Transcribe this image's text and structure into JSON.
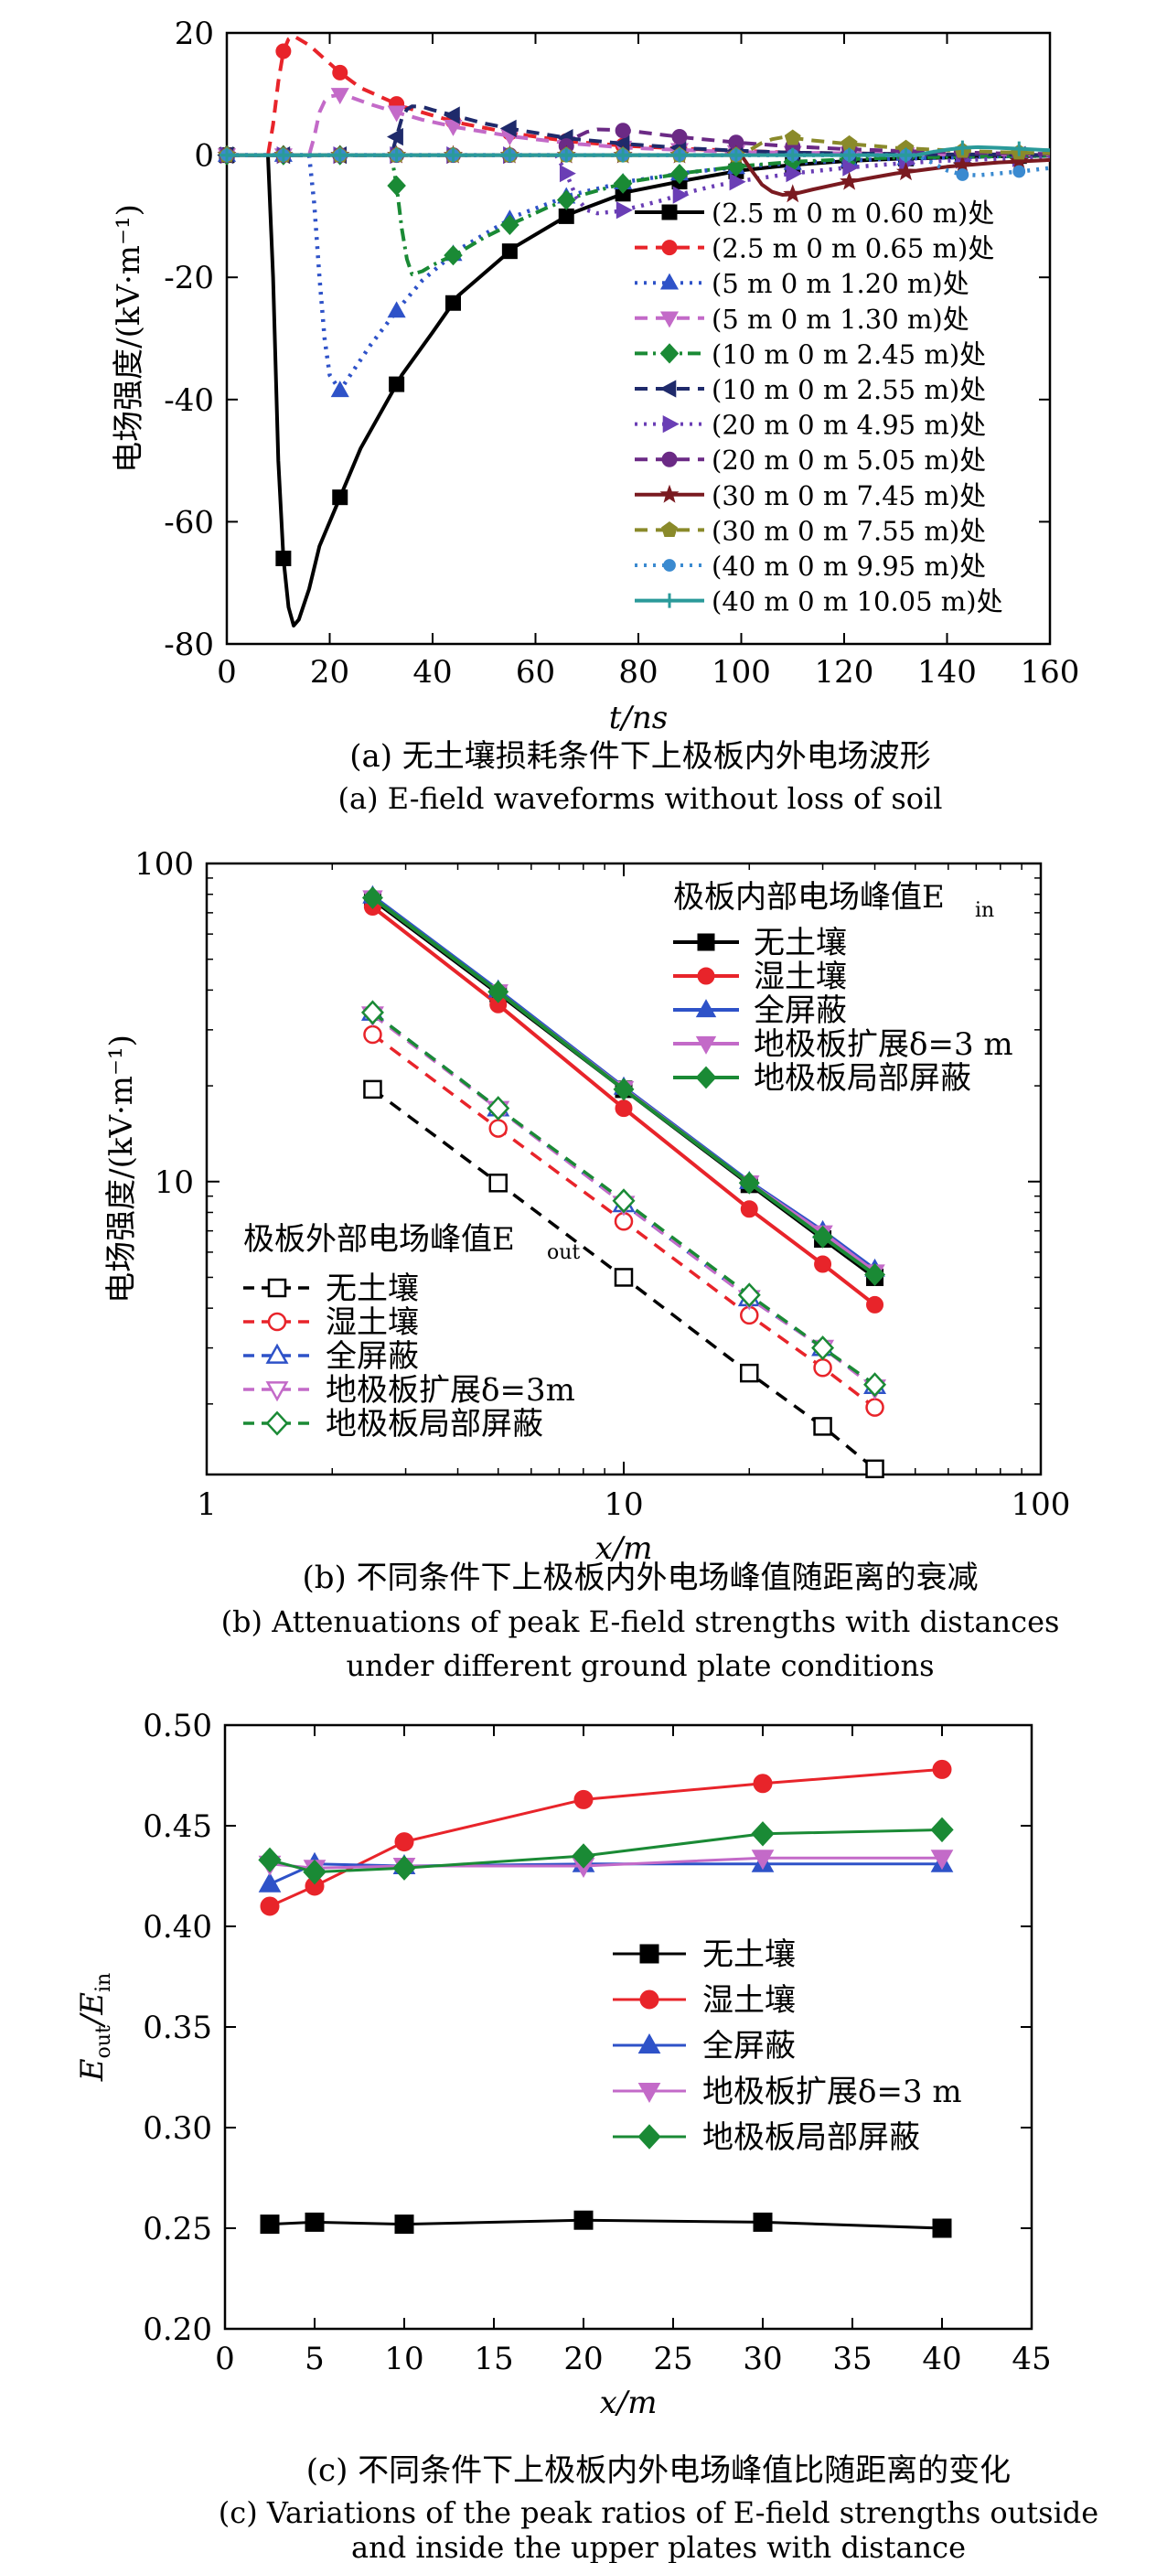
{
  "chart_data": [
    {
      "type": "line",
      "ylabel": "电场强度/(kV·m⁻¹)",
      "xlabel": "t/ns",
      "xlim": [
        0,
        160
      ],
      "ylim": [
        -80,
        20
      ],
      "xticks": [
        0,
        20,
        40,
        60,
        80,
        100,
        120,
        140,
        160
      ],
      "yticks": [
        -80,
        -60,
        -40,
        -20,
        0,
        20
      ],
      "xtick_labels": [
        "0",
        "20",
        "40",
        "60",
        "80",
        "100",
        "120",
        "140",
        "160"
      ],
      "ytick_labels": [
        "-80",
        "-60",
        "-40",
        "-20",
        "0",
        "20"
      ],
      "legend_position": "right",
      "caption_cn": "(a) 无土壤损耗条件下上极板内外电场波形",
      "caption_en": "(a) E-field waveforms without loss of soil",
      "series": [
        {
          "name": "(2.5 m 0 m 0.60 m)处",
          "color": "#000000",
          "dash": "solid",
          "marker": "square",
          "x": [
            0,
            8,
            9,
            10,
            11,
            12,
            13,
            14,
            16,
            18,
            22,
            26,
            34,
            40,
            45,
            56,
            67,
            78,
            90,
            100,
            110,
            120,
            130,
            140,
            150,
            160
          ],
          "y": [
            0,
            0,
            -20,
            -50,
            -66,
            -74,
            -77,
            -76,
            -71,
            -64,
            -56,
            -48,
            -36,
            -29,
            -23,
            -15,
            -9.5,
            -6,
            -4,
            -2.5,
            -1.6,
            -1,
            -0.6,
            -0.4,
            -0.2,
            -0.1
          ]
        },
        {
          "name": "(2.5 m 0 m 0.65 m)处",
          "color": "#e8242a",
          "dash": "dash",
          "marker": "circle",
          "x": [
            0,
            8,
            9,
            10,
            11,
            12,
            13,
            14,
            16,
            18,
            22,
            26,
            34,
            40,
            45,
            56,
            67,
            78,
            90,
            100,
            110,
            120,
            130,
            140,
            150,
            160
          ],
          "y": [
            0,
            0,
            5,
            12,
            17,
            19,
            19.5,
            19,
            18,
            16.5,
            13.5,
            11,
            8,
            6.5,
            5.3,
            3.5,
            2.2,
            1.5,
            1,
            0.7,
            0.4,
            0.3,
            0.2,
            0.1,
            0.1,
            0
          ]
        },
        {
          "name": "(5 m 0 m 1.20 m)处",
          "color": "#2e52c8",
          "dash": "dot",
          "marker": "triangle",
          "x": [
            0,
            16,
            17,
            18,
            19,
            20,
            22,
            24,
            28,
            33,
            38,
            45,
            56,
            67,
            78,
            90,
            100,
            110,
            120,
            130,
            140,
            150,
            160
          ],
          "y": [
            0,
            0,
            -8,
            -20,
            -30,
            -36,
            -38.5,
            -36,
            -31,
            -25.5,
            -20.5,
            -15.5,
            -10,
            -6.5,
            -4.3,
            -2.8,
            -1.9,
            -1.3,
            -0.9,
            -0.6,
            -0.4,
            -0.2,
            -0.1
          ]
        },
        {
          "name": "(5 m 0 m 1.30 m)处",
          "color": "#c36ac8",
          "dash": "dash",
          "marker": "triangle-down",
          "x": [
            0,
            16,
            17,
            18,
            19,
            20,
            22,
            24,
            28,
            33,
            38,
            45,
            56,
            67,
            78,
            90,
            100,
            110,
            120,
            130,
            140,
            150,
            160
          ],
          "y": [
            0,
            0,
            3,
            7,
            8.8,
            9.6,
            9.9,
            9.5,
            8.3,
            7,
            5.8,
            4.5,
            3,
            1.9,
            1.2,
            0.8,
            0.5,
            0.4,
            0.3,
            0.2,
            0.1,
            0.1,
            0
          ]
        },
        {
          "name": "(10 m 0 m 2.45 m)处",
          "color": "#1a8a35",
          "dash": "dashdot",
          "marker": "diamond",
          "x": [
            0,
            32,
            33,
            34,
            35,
            36,
            38,
            40,
            45,
            50,
            56,
            62,
            67,
            78,
            90,
            100,
            110,
            120,
            130,
            140,
            150,
            160
          ],
          "y": [
            0,
            0,
            -5,
            -12,
            -17,
            -19.5,
            -19,
            -18,
            -16,
            -13.5,
            -11,
            -8.7,
            -7,
            -4.4,
            -2.8,
            -1.8,
            -1.1,
            -0.7,
            -0.4,
            -0.3,
            -0.2,
            -0.1
          ]
        },
        {
          "name": "(10 m 0 m 2.55 m)处",
          "color": "#1f2a6b",
          "dash": "dash",
          "marker": "triangle-left",
          "x": [
            0,
            32,
            33,
            34,
            35,
            36,
            38,
            40,
            45,
            50,
            56,
            67,
            78,
            90,
            100,
            110,
            120,
            130,
            140,
            150,
            160
          ],
          "y": [
            0,
            0,
            3,
            6,
            7.5,
            8,
            7.9,
            7.4,
            6.3,
            5.2,
            4.2,
            2.7,
            1.8,
            1.1,
            0.7,
            0.4,
            0.3,
            0.2,
            0.1,
            0.1,
            0
          ]
        },
        {
          "name": "(20 m 0 m 4.95 m)处",
          "color": "#6a3eb5",
          "dash": "dot",
          "marker": "triangle-right",
          "x": [
            0,
            64,
            66,
            68,
            70,
            72,
            76,
            80,
            85,
            90,
            95,
            100,
            110,
            120,
            130,
            140,
            150,
            160
          ],
          "y": [
            0,
            0,
            -3,
            -7,
            -9,
            -9.5,
            -9.2,
            -8.4,
            -7.3,
            -6,
            -5,
            -4.2,
            -3,
            -2.1,
            -1.4,
            -0.9,
            -0.6,
            -0.4
          ]
        },
        {
          "name": "(20 m 0 m 5.05 m)处",
          "color": "#6b2a85",
          "dash": "dash",
          "marker": "circle",
          "x": [
            0,
            64,
            66,
            68,
            70,
            72,
            76,
            80,
            85,
            90,
            100,
            110,
            120,
            130,
            140,
            150,
            160
          ],
          "y": [
            0,
            0,
            1.5,
            3,
            3.8,
            4.2,
            4.1,
            3.8,
            3.3,
            2.8,
            2,
            1.4,
            1,
            0.7,
            0.5,
            0.3,
            0.2
          ]
        },
        {
          "name": "(30 m 0 m 7.45 m)处",
          "color": "#7a1a20",
          "dash": "solid",
          "marker": "star",
          "x": [
            0,
            100,
            102,
            104,
            106,
            108,
            110,
            114,
            120,
            126,
            130,
            140,
            150,
            160
          ],
          "y": [
            0,
            0,
            -2.5,
            -4.8,
            -6,
            -6.5,
            -6.4,
            -5.6,
            -4.5,
            -3.6,
            -3,
            -1.9,
            -1.2,
            -0.8
          ]
        },
        {
          "name": "(30 m 0 m 7.55 m)处",
          "color": "#8a8a2a",
          "dash": "dash",
          "marker": "pentagon",
          "x": [
            0,
            100,
            102,
            104,
            106,
            108,
            110,
            114,
            120,
            126,
            130,
            140,
            150,
            160
          ],
          "y": [
            0,
            0,
            1,
            2,
            2.6,
            2.9,
            2.8,
            2.4,
            1.9,
            1.5,
            1.2,
            0.8,
            0.5,
            0.3
          ]
        },
        {
          "name": "(40 m 0 m 9.95 m)处",
          "color": "#3a8ad0",
          "dash": "dot",
          "marker": "sphere",
          "x": [
            0,
            134,
            137,
            140,
            143,
            146,
            150,
            155,
            160
          ],
          "y": [
            0,
            0,
            -1.2,
            -2.5,
            -3.2,
            -3.3,
            -3,
            -2.6,
            -2.1
          ]
        },
        {
          "name": "(40 m 0 m 10.05 m)处",
          "color": "#2a9a9a",
          "dash": "solid",
          "marker": "plus",
          "x": [
            0,
            134,
            137,
            140,
            143,
            146,
            150,
            155,
            160
          ],
          "y": [
            0,
            0,
            0.5,
            0.9,
            1.2,
            1.3,
            1.2,
            1,
            0.8
          ]
        }
      ]
    },
    {
      "type": "line",
      "xscale": "log",
      "yscale": "log",
      "xlabel": "x/m",
      "ylabel": "电场强度/(kV·m⁻¹)",
      "xlim": [
        1,
        100
      ],
      "ylim": [
        1.2,
        100
      ],
      "xtick_labels": [
        "1",
        "10",
        "100"
      ],
      "ytick_labels": [
        "10",
        "100"
      ],
      "caption_cn": "(b) 不同条件下上极板内外电场峰值随距离的衰减",
      "caption_en_1": "(b) Attenuations of peak E-field strengths with distances",
      "caption_en_2": "under different ground plate conditions",
      "legend_in_title": "极板内部电场峰值E",
      "legend_in_sub": "in",
      "legend_out_title": "极板外部电场峰值E",
      "legend_out_sub": "out",
      "x": [
        2.5,
        5,
        10,
        20,
        30,
        40
      ],
      "series_in": [
        {
          "name": "无土壤",
          "color": "#000000",
          "marker": "square",
          "values": [
            77,
            39,
            19.5,
            9.8,
            6.6,
            5.0
          ]
        },
        {
          "name": "湿土壤",
          "color": "#e8242a",
          "marker": "circle",
          "values": [
            73,
            36,
            17,
            8.2,
            5.5,
            4.1
          ]
        },
        {
          "name": "全屏蔽",
          "color": "#2e52c8",
          "marker": "triangle",
          "values": [
            79,
            40,
            19.8,
            10,
            7.0,
            5.3
          ]
        },
        {
          "name": "地极板扩展δ=3 m",
          "color": "#c36ac8",
          "marker": "triangle-down",
          "values": [
            78,
            39.5,
            19.6,
            9.9,
            6.9,
            5.2
          ]
        },
        {
          "name": "地极板局部屏蔽",
          "color": "#1a8a35",
          "marker": "diamond",
          "values": [
            78,
            39.5,
            19.5,
            9.9,
            6.7,
            5.1
          ]
        }
      ],
      "series_out": [
        {
          "name": "无土壤",
          "color": "#000000",
          "marker": "square-open",
          "values": [
            19.5,
            9.9,
            5.0,
            2.5,
            1.7,
            1.25
          ]
        },
        {
          "name": "湿土壤",
          "color": "#e8242a",
          "marker": "circle-open",
          "values": [
            29,
            14.7,
            7.5,
            3.8,
            2.6,
            1.95
          ]
        },
        {
          "name": "全屏蔽",
          "color": "#2e52c8",
          "marker": "triangle-open",
          "values": [
            34,
            17,
            8.5,
            4.3,
            3.0,
            2.28
          ]
        },
        {
          "name": "地极板扩展δ=3m",
          "color": "#c36ac8",
          "marker": "triangle-down-open",
          "values": [
            33.5,
            16.9,
            8.5,
            4.3,
            3.0,
            2.25
          ]
        },
        {
          "name": "地极板局部屏蔽",
          "color": "#1a8a35",
          "marker": "diamond-open",
          "values": [
            34,
            17,
            8.7,
            4.4,
            3.0,
            2.3
          ]
        }
      ]
    },
    {
      "type": "line",
      "xlabel": "x/m",
      "ylabel_main": "E",
      "ylabel_sub1": "out",
      "ylabel_mid": "/E",
      "ylabel_sub2": "in",
      "xlim": [
        0,
        45
      ],
      "ylim": [
        0.2,
        0.5
      ],
      "xtick_labels": [
        "0",
        "5",
        "10",
        "15",
        "20",
        "25",
        "30",
        "35",
        "40",
        "45"
      ],
      "ytick_labels": [
        "0.20",
        "0.25",
        "0.30",
        "0.35",
        "0.40",
        "0.45",
        "0.50"
      ],
      "caption_cn": "(c) 不同条件下上极板内外电场峰值比随距离的变化",
      "caption_en_1": "(c) Variations of the peak ratios of E-field strengths outside",
      "caption_en_2": "and inside the upper plates with distance",
      "x": [
        2.5,
        5,
        10,
        20,
        30,
        40
      ],
      "series": [
        {
          "name": "无土壤",
          "color": "#000000",
          "marker": "square",
          "values": [
            0.252,
            0.253,
            0.252,
            0.254,
            0.253,
            0.25
          ]
        },
        {
          "name": "湿土壤",
          "color": "#e8242a",
          "marker": "circle",
          "values": [
            0.41,
            0.42,
            0.442,
            0.463,
            0.471,
            0.478
          ]
        },
        {
          "name": "全屏蔽",
          "color": "#2e52c8",
          "marker": "triangle",
          "values": [
            0.421,
            0.431,
            0.43,
            0.431,
            0.431,
            0.431
          ]
        },
        {
          "name": "地极板扩展δ=3 m",
          "color": "#c36ac8",
          "marker": "triangle-down",
          "values": [
            0.431,
            0.429,
            0.43,
            0.43,
            0.434,
            0.434
          ]
        },
        {
          "name": "地极板局部屏蔽",
          "color": "#1a8a35",
          "marker": "diamond",
          "values": [
            0.433,
            0.427,
            0.429,
            0.435,
            0.446,
            0.448
          ]
        }
      ]
    }
  ]
}
